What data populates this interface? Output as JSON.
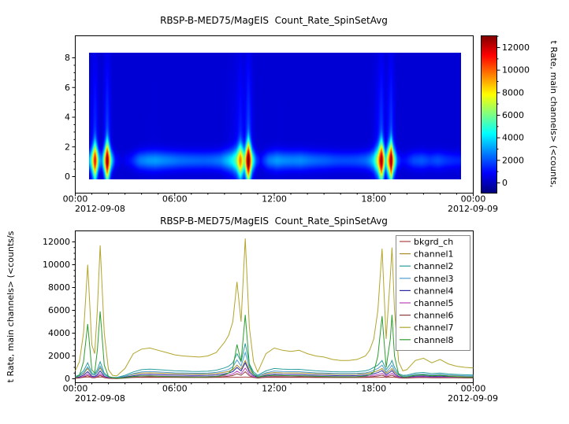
{
  "chart_data": [
    {
      "type": "heatmap",
      "title": "RBSP-B-MED75/MagEIS  Count_Rate_SpinSetAvg",
      "x_range_hours": [
        0,
        24
      ],
      "x_tick_hours": [
        0,
        6,
        12,
        18,
        24
      ],
      "x_tick_labels": [
        "00:00",
        "06:00",
        "12:00",
        "18:00",
        "00:00"
      ],
      "x_dates": [
        "2012-09-08",
        "2012-09-09"
      ],
      "ylim": [
        0,
        8
      ],
      "y_ticks": [
        0,
        2,
        4,
        6,
        8
      ],
      "colormap": "jet",
      "colorbar_ticks": [
        0,
        2000,
        4000,
        6000,
        8000,
        10000,
        12000
      ],
      "colorbar_label": "t Rate, main channels> (<counts,",
      "note": "Blue background with bright band centered near y=1 whose intensity follows the channel7 series of the line chart; vertical light-blue streaks with red/yellow cores near 00:45, 01:30, 09:45, 10:15, 18:30 and 19:05"
    },
    {
      "type": "line",
      "title": "RBSP-B-MED75/MagEIS  Count_Rate_SpinSetAvg",
      "ylabel": "t Rate, main channels> (<counts/s",
      "ylim": [
        -350,
        12950
      ],
      "y_ticks": [
        0,
        2000,
        4000,
        6000,
        8000,
        10000,
        12000
      ],
      "x_range_hours": [
        0,
        24
      ],
      "x_tick_hours": [
        0,
        6,
        12,
        18,
        24
      ],
      "x_tick_labels": [
        "00:00",
        "06:00",
        "12:00",
        "18:00",
        "00:00"
      ],
      "x_dates": [
        "2012-09-08",
        "2012-09-09"
      ],
      "legend_position": "top-right",
      "x_hours": [
        0,
        0.25,
        0.5,
        0.75,
        1,
        1.17,
        1.33,
        1.5,
        1.75,
        2,
        2.25,
        2.5,
        3,
        3.5,
        4,
        4.5,
        5,
        5.5,
        6,
        6.5,
        7,
        7.5,
        8,
        8.5,
        9,
        9.25,
        9.5,
        9.75,
        10,
        10.25,
        10.5,
        10.75,
        11,
        11.5,
        12,
        12.5,
        13,
        13.5,
        14,
        14.5,
        15,
        15.5,
        16,
        16.5,
        17,
        17.5,
        17.75,
        18,
        18.25,
        18.5,
        18.75,
        19,
        19.1,
        19.25,
        19.5,
        19.75,
        20,
        20.5,
        21,
        21.5,
        22,
        22.5,
        23,
        23.5,
        24
      ],
      "series": [
        {
          "name": "bkgrd_ch",
          "color": "#aa4444",
          "values": [
            120,
            120,
            130,
            150,
            130,
            120,
            130,
            150,
            130,
            120,
            110,
            110,
            110,
            115,
            120,
            120,
            120,
            115,
            115,
            110,
            110,
            110,
            110,
            115,
            120,
            125,
            130,
            140,
            130,
            150,
            130,
            120,
            110,
            115,
            120,
            120,
            118,
            118,
            115,
            112,
            110,
            110,
            108,
            108,
            110,
            112,
            115,
            120,
            125,
            135,
            120,
            130,
            135,
            125,
            112,
            110,
            110,
            112,
            114,
            112,
            112,
            110,
            108,
            108,
            107
          ]
        },
        {
          "name": "channel1",
          "color": "#ab8c2e",
          "values": [
            150,
            250,
            450,
            900,
            350,
            300,
            550,
            950,
            350,
            150,
            100,
            90,
            200,
            400,
            500,
            520,
            500,
            470,
            440,
            430,
            420,
            410,
            420,
            470,
            580,
            650,
            800,
            1200,
            850,
            1600,
            750,
            400,
            220,
            450,
            550,
            520,
            510,
            510,
            480,
            450,
            430,
            410,
            400,
            400,
            410,
            450,
            500,
            600,
            700,
            900,
            500,
            750,
            900,
            600,
            300,
            220,
            230,
            320,
            340,
            300,
            320,
            280,
            260,
            240,
            230
          ]
        },
        {
          "name": "channel2",
          "color": "#2a9d9d",
          "values": [
            200,
            350,
            700,
            1400,
            500,
            400,
            800,
            1500,
            500,
            200,
            120,
            110,
            300,
            600,
            800,
            850,
            800,
            750,
            700,
            680,
            650,
            640,
            660,
            750,
            950,
            1100,
            1400,
            2200,
            1500,
            3100,
            1300,
            600,
            300,
            700,
            900,
            850,
            820,
            830,
            760,
            700,
            660,
            620,
            600,
            600,
            620,
            700,
            800,
            1000,
            1200,
            1600,
            800,
            1300,
            1600,
            1000,
            450,
            300,
            320,
            500,
            550,
            450,
            500,
            420,
            380,
            350,
            330
          ]
        },
        {
          "name": "channel3",
          "color": "#4f9fd0",
          "values": [
            150,
            260,
            520,
            1050,
            380,
            300,
            600,
            1120,
            380,
            150,
            90,
            80,
            220,
            450,
            600,
            640,
            600,
            560,
            520,
            510,
            490,
            480,
            500,
            560,
            710,
            820,
            1050,
            1650,
            1120,
            2300,
            980,
            450,
            220,
            520,
            680,
            640,
            620,
            620,
            570,
            520,
            500,
            470,
            450,
            450,
            470,
            520,
            600,
            750,
            900,
            1200,
            600,
            980,
            1200,
            750,
            340,
            220,
            240,
            380,
            410,
            340,
            380,
            320,
            290,
            260,
            250
          ]
        },
        {
          "name": "channel4",
          "color": "#2929a3",
          "values": [
            90,
            160,
            320,
            630,
            220,
            180,
            360,
            680,
            220,
            90,
            50,
            50,
            140,
            270,
            360,
            380,
            360,
            340,
            320,
            310,
            290,
            290,
            300,
            340,
            430,
            500,
            630,
            990,
            680,
            1400,
            590,
            270,
            140,
            320,
            410,
            380,
            370,
            370,
            340,
            320,
            300,
            280,
            270,
            270,
            280,
            320,
            360,
            450,
            540,
            720,
            360,
            590,
            720,
            450,
            200,
            140,
            140,
            230,
            250,
            200,
            230,
            190,
            170,
            160,
            150
          ]
        },
        {
          "name": "channel5",
          "color": "#bb44bb",
          "values": [
            60,
            100,
            210,
            420,
            150,
            120,
            240,
            450,
            150,
            60,
            40,
            30,
            90,
            180,
            240,
            260,
            240,
            230,
            210,
            200,
            200,
            190,
            200,
            230,
            290,
            330,
            420,
            660,
            450,
            930,
            390,
            180,
            90,
            210,
            270,
            260,
            250,
            250,
            230,
            210,
            200,
            190,
            180,
            180,
            190,
            210,
            240,
            300,
            360,
            480,
            240,
            390,
            480,
            300,
            140,
            90,
            100,
            150,
            170,
            140,
            150,
            130,
            110,
            110,
            100
          ]
        },
        {
          "name": "channel6",
          "color": "#8b3a3a",
          "values": [
            40,
            70,
            140,
            280,
            100,
            80,
            160,
            300,
            100,
            40,
            25,
            20,
            60,
            120,
            160,
            170,
            160,
            150,
            140,
            140,
            130,
            130,
            130,
            150,
            190,
            220,
            280,
            440,
            300,
            620,
            260,
            120,
            60,
            140,
            180,
            170,
            160,
            170,
            150,
            140,
            130,
            120,
            120,
            120,
            120,
            140,
            160,
            200,
            240,
            320,
            160,
            260,
            320,
            200,
            90,
            60,
            60,
            100,
            110,
            90,
            100,
            80,
            80,
            70,
            70
          ]
        },
        {
          "name": "channel7",
          "color": "#b2a52c",
          "values": [
            700,
            1500,
            4000,
            10000,
            3000,
            2200,
            6000,
            11700,
            4000,
            800,
            300,
            250,
            900,
            2200,
            2600,
            2700,
            2500,
            2300,
            2100,
            2000,
            1950,
            1900,
            2000,
            2300,
            3200,
            3800,
            5000,
            8500,
            5000,
            12300,
            4500,
            1500,
            600,
            2200,
            2700,
            2500,
            2400,
            2500,
            2200,
            2000,
            1900,
            1700,
            1600,
            1600,
            1700,
            2000,
            2500,
            3500,
            6000,
            11400,
            3500,
            9000,
            11500,
            6000,
            1500,
            700,
            800,
            1600,
            1800,
            1400,
            1700,
            1300,
            1100,
            1000,
            950
          ]
        },
        {
          "name": "channel8",
          "color": "#2e9e2e",
          "values": [
            100,
            300,
            1500,
            4800,
            800,
            500,
            2500,
            5900,
            1200,
            200,
            80,
            60,
            100,
            200,
            250,
            250,
            220,
            200,
            180,
            170,
            160,
            160,
            170,
            200,
            350,
            500,
            900,
            3000,
            1500,
            5600,
            1200,
            400,
            150,
            250,
            300,
            280,
            260,
            260,
            240,
            220,
            200,
            180,
            170,
            170,
            180,
            250,
            350,
            600,
            2000,
            5500,
            1000,
            3500,
            5600,
            2000,
            400,
            150,
            150,
            300,
            350,
            250,
            300,
            220,
            180,
            150,
            140
          ]
        }
      ]
    }
  ]
}
